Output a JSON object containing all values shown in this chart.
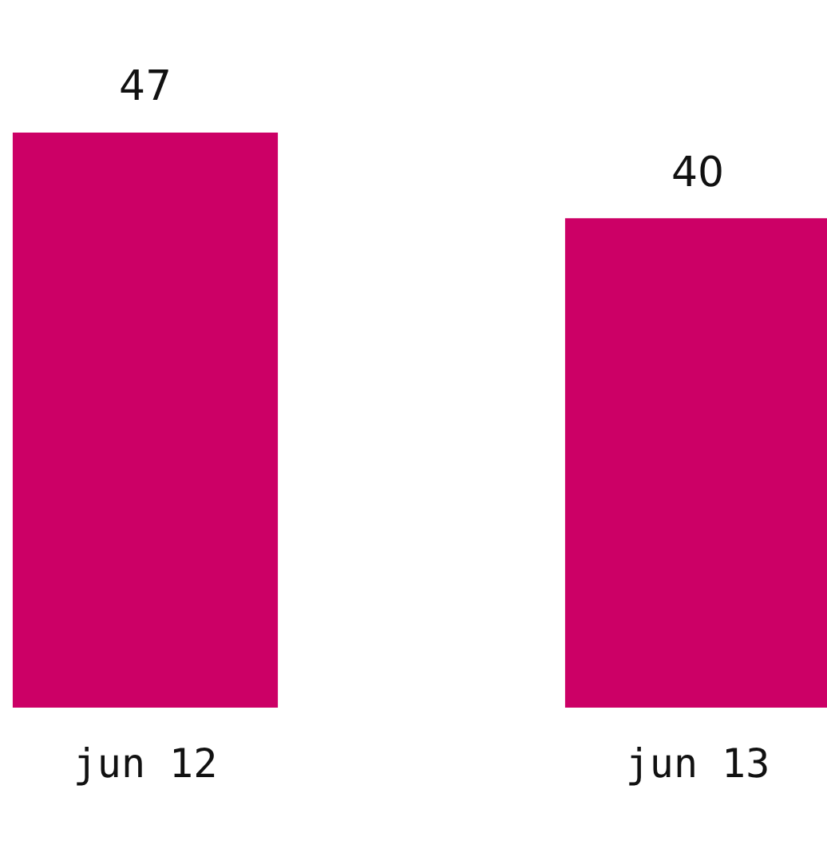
{
  "chart_data": {
    "type": "bar",
    "categories": [
      "jun 12",
      "jun 13"
    ],
    "values": [
      47,
      40
    ],
    "color": "#cc0066",
    "data_labels": true
  }
}
